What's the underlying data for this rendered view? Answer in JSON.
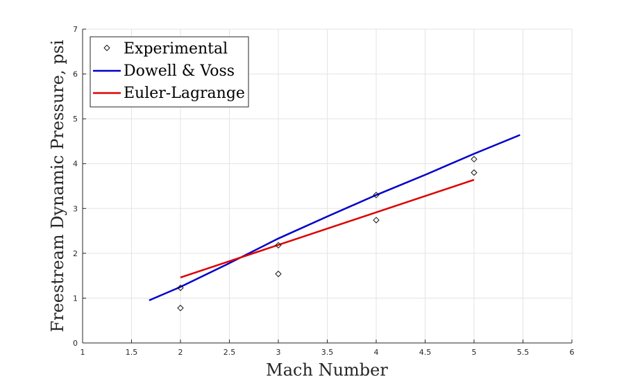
{
  "chart_data": {
    "type": "scatter",
    "title": "",
    "xlabel": "Mach Number",
    "ylabel": "Freestream Dynamic Pressure, psi",
    "xlim": [
      1,
      6
    ],
    "ylim": [
      0,
      7
    ],
    "xticks": [
      1,
      1.5,
      2,
      2.5,
      3,
      3.5,
      4,
      4.5,
      5,
      5.5,
      6
    ],
    "xtick_labels": [
      "1",
      "1.5",
      "2",
      "2.5",
      "3",
      "3.5",
      "4",
      "4.5",
      "5",
      "5.5",
      "6"
    ],
    "yticks": [
      0,
      1,
      2,
      3,
      4,
      5,
      6,
      7
    ],
    "ytick_labels": [
      "0",
      "1",
      "2",
      "3",
      "4",
      "5",
      "6",
      "7"
    ],
    "grid": true,
    "legend_position": "top-left",
    "series": [
      {
        "name": "Experimental",
        "kind": "markers",
        "marker": "diamond",
        "color": "#000000",
        "x": [
          2,
          2,
          3,
          3,
          4,
          4,
          5,
          5
        ],
        "y": [
          0.78,
          1.23,
          1.54,
          2.18,
          2.74,
          3.3,
          3.8,
          4.1
        ]
      },
      {
        "name": "Dowell & Voss",
        "kind": "line",
        "color": "#0000cc",
        "x": [
          1.68,
          2.0,
          2.5,
          3.0,
          3.5,
          4.0,
          4.5,
          5.0,
          5.47
        ],
        "y": [
          0.95,
          1.25,
          1.78,
          2.33,
          2.82,
          3.3,
          3.75,
          4.22,
          4.64
        ]
      },
      {
        "name": "Euler-Lagrange",
        "kind": "line",
        "color": "#dd0000",
        "x": [
          2.0,
          5.0
        ],
        "y": [
          1.46,
          3.64
        ]
      }
    ]
  }
}
